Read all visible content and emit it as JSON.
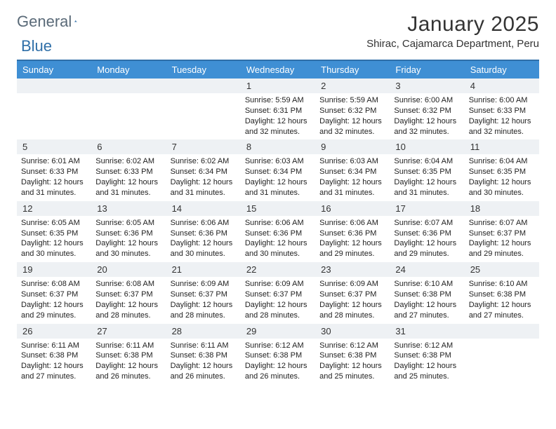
{
  "colors": {
    "accent": "#2f6fa8",
    "header_bg": "#3f8fd4",
    "daynum_bg": "#eef1f4",
    "text": "#333333",
    "logo_gray": "#5a6a78"
  },
  "logo": {
    "part1": "General",
    "part2": "Blue"
  },
  "title": "January 2025",
  "location": "Shirac, Cajamarca Department, Peru",
  "day_headers": [
    "Sunday",
    "Monday",
    "Tuesday",
    "Wednesday",
    "Thursday",
    "Friday",
    "Saturday"
  ],
  "weeks": [
    [
      {
        "empty": true
      },
      {
        "empty": true
      },
      {
        "empty": true
      },
      {
        "day": "1",
        "sunrise": "5:59 AM",
        "sunset": "6:31 PM",
        "daylight": "12 hours and 32 minutes."
      },
      {
        "day": "2",
        "sunrise": "5:59 AM",
        "sunset": "6:32 PM",
        "daylight": "12 hours and 32 minutes."
      },
      {
        "day": "3",
        "sunrise": "6:00 AM",
        "sunset": "6:32 PM",
        "daylight": "12 hours and 32 minutes."
      },
      {
        "day": "4",
        "sunrise": "6:00 AM",
        "sunset": "6:33 PM",
        "daylight": "12 hours and 32 minutes."
      }
    ],
    [
      {
        "day": "5",
        "sunrise": "6:01 AM",
        "sunset": "6:33 PM",
        "daylight": "12 hours and 31 minutes."
      },
      {
        "day": "6",
        "sunrise": "6:02 AM",
        "sunset": "6:33 PM",
        "daylight": "12 hours and 31 minutes."
      },
      {
        "day": "7",
        "sunrise": "6:02 AM",
        "sunset": "6:34 PM",
        "daylight": "12 hours and 31 minutes."
      },
      {
        "day": "8",
        "sunrise": "6:03 AM",
        "sunset": "6:34 PM",
        "daylight": "12 hours and 31 minutes."
      },
      {
        "day": "9",
        "sunrise": "6:03 AM",
        "sunset": "6:34 PM",
        "daylight": "12 hours and 31 minutes."
      },
      {
        "day": "10",
        "sunrise": "6:04 AM",
        "sunset": "6:35 PM",
        "daylight": "12 hours and 31 minutes."
      },
      {
        "day": "11",
        "sunrise": "6:04 AM",
        "sunset": "6:35 PM",
        "daylight": "12 hours and 30 minutes."
      }
    ],
    [
      {
        "day": "12",
        "sunrise": "6:05 AM",
        "sunset": "6:35 PM",
        "daylight": "12 hours and 30 minutes."
      },
      {
        "day": "13",
        "sunrise": "6:05 AM",
        "sunset": "6:36 PM",
        "daylight": "12 hours and 30 minutes."
      },
      {
        "day": "14",
        "sunrise": "6:06 AM",
        "sunset": "6:36 PM",
        "daylight": "12 hours and 30 minutes."
      },
      {
        "day": "15",
        "sunrise": "6:06 AM",
        "sunset": "6:36 PM",
        "daylight": "12 hours and 30 minutes."
      },
      {
        "day": "16",
        "sunrise": "6:06 AM",
        "sunset": "6:36 PM",
        "daylight": "12 hours and 29 minutes."
      },
      {
        "day": "17",
        "sunrise": "6:07 AM",
        "sunset": "6:36 PM",
        "daylight": "12 hours and 29 minutes."
      },
      {
        "day": "18",
        "sunrise": "6:07 AM",
        "sunset": "6:37 PM",
        "daylight": "12 hours and 29 minutes."
      }
    ],
    [
      {
        "day": "19",
        "sunrise": "6:08 AM",
        "sunset": "6:37 PM",
        "daylight": "12 hours and 29 minutes."
      },
      {
        "day": "20",
        "sunrise": "6:08 AM",
        "sunset": "6:37 PM",
        "daylight": "12 hours and 28 minutes."
      },
      {
        "day": "21",
        "sunrise": "6:09 AM",
        "sunset": "6:37 PM",
        "daylight": "12 hours and 28 minutes."
      },
      {
        "day": "22",
        "sunrise": "6:09 AM",
        "sunset": "6:37 PM",
        "daylight": "12 hours and 28 minutes."
      },
      {
        "day": "23",
        "sunrise": "6:09 AM",
        "sunset": "6:37 PM",
        "daylight": "12 hours and 28 minutes."
      },
      {
        "day": "24",
        "sunrise": "6:10 AM",
        "sunset": "6:38 PM",
        "daylight": "12 hours and 27 minutes."
      },
      {
        "day": "25",
        "sunrise": "6:10 AM",
        "sunset": "6:38 PM",
        "daylight": "12 hours and 27 minutes."
      }
    ],
    [
      {
        "day": "26",
        "sunrise": "6:11 AM",
        "sunset": "6:38 PM",
        "daylight": "12 hours and 27 minutes."
      },
      {
        "day": "27",
        "sunrise": "6:11 AM",
        "sunset": "6:38 PM",
        "daylight": "12 hours and 26 minutes."
      },
      {
        "day": "28",
        "sunrise": "6:11 AM",
        "sunset": "6:38 PM",
        "daylight": "12 hours and 26 minutes."
      },
      {
        "day": "29",
        "sunrise": "6:12 AM",
        "sunset": "6:38 PM",
        "daylight": "12 hours and 26 minutes."
      },
      {
        "day": "30",
        "sunrise": "6:12 AM",
        "sunset": "6:38 PM",
        "daylight": "12 hours and 25 minutes."
      },
      {
        "day": "31",
        "sunrise": "6:12 AM",
        "sunset": "6:38 PM",
        "daylight": "12 hours and 25 minutes."
      },
      {
        "empty": true
      }
    ]
  ],
  "labels": {
    "sunrise": "Sunrise:",
    "sunset": "Sunset:",
    "daylight": "Daylight:"
  },
  "fonts": {
    "title_size_pt": 22,
    "location_size_pt": 11,
    "dow_size_pt": 10,
    "cell_size_pt": 8
  }
}
